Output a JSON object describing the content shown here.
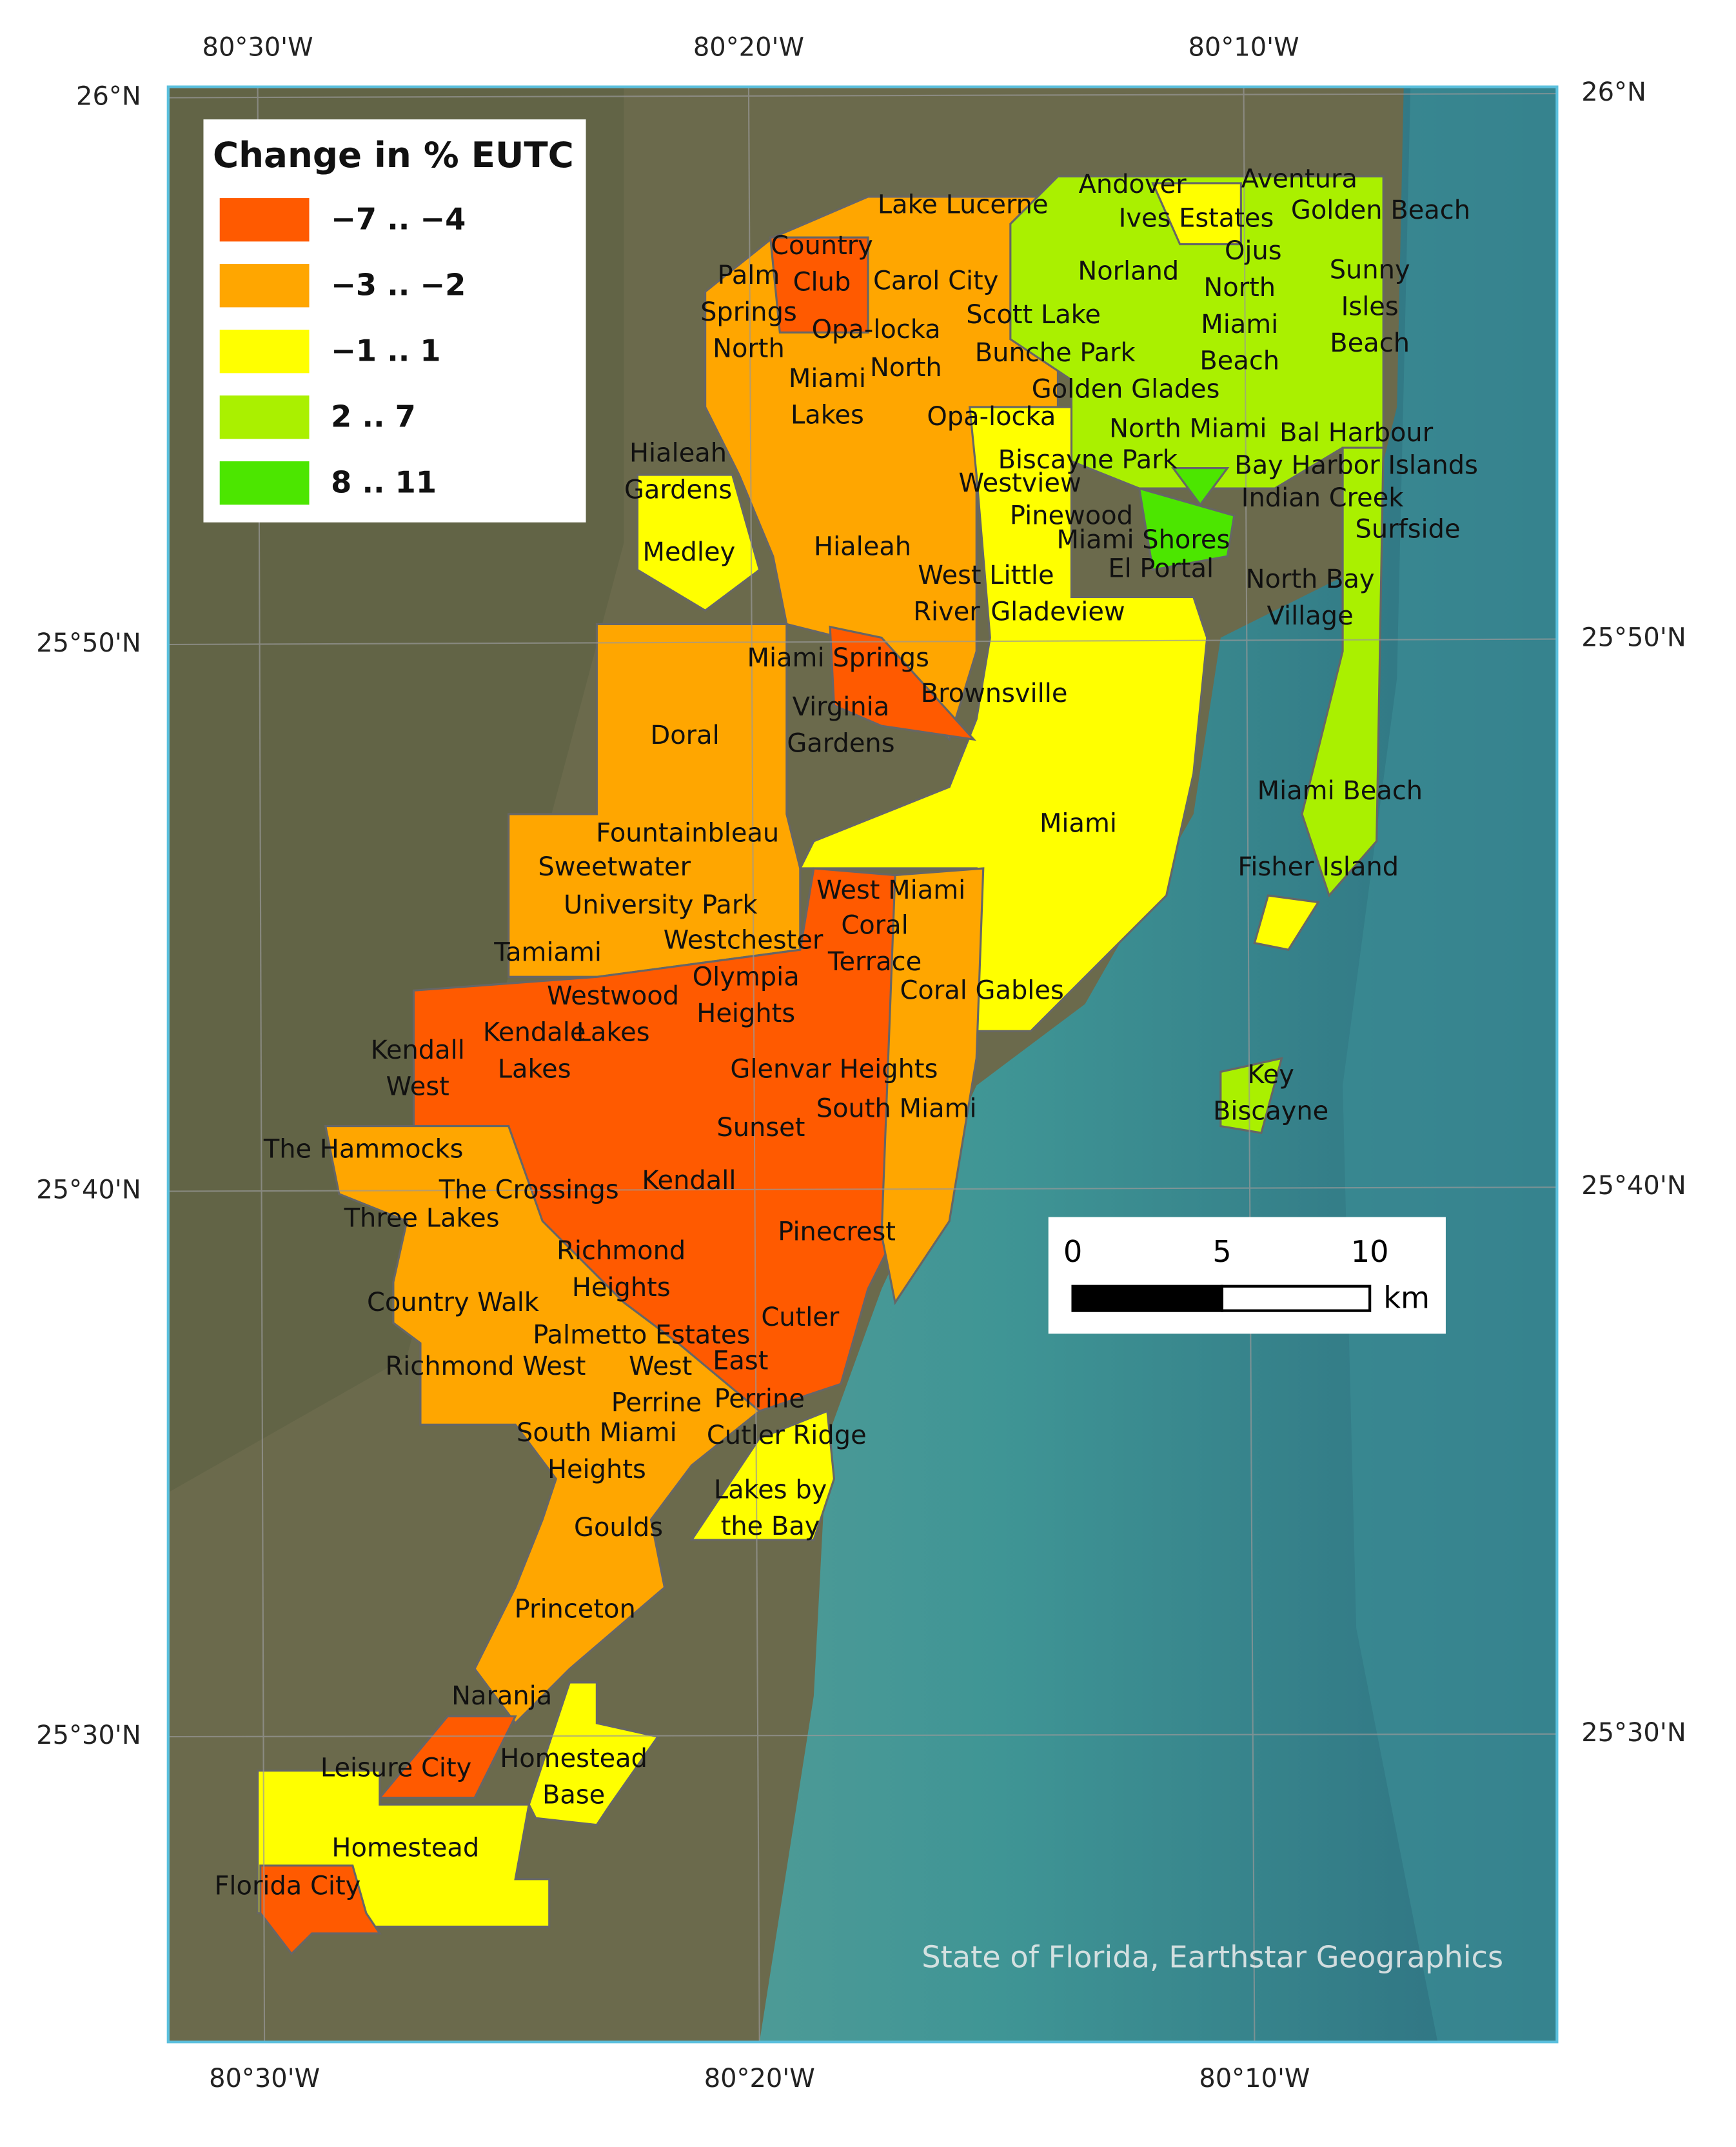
{
  "legend": {
    "title": "Change in % EUTC",
    "items": [
      {
        "label": "−7 .. −4",
        "color": "#ff5a00"
      },
      {
        "label": "−3 .. −2",
        "color": "#ffa600"
      },
      {
        "label": "−1 .. 1",
        "color": "#ffff00"
      },
      {
        "label": "2 .. 7",
        "color": "#aaf000"
      },
      {
        "label": "8 .. 11",
        "color": "#4ce600"
      }
    ]
  },
  "longitudes": [
    "80°30'W",
    "80°20'W",
    "80°10'W"
  ],
  "latitudes": [
    "26°N",
    "25°50'N",
    "25°40'N",
    "25°30'N"
  ],
  "scale_bar": {
    "ticks": [
      "0",
      "5",
      "10"
    ],
    "unit": "km"
  },
  "attribution": "State of Florida, Earthstar Geographics",
  "places": [
    "Lake Lucerne",
    "Andover",
    "Aventura",
    "Ives Estates",
    "Golden Beach",
    "Country\nClub",
    "Carol City",
    "Norland",
    "Ojus",
    "Sunny\nIsles\nBeach",
    "Palm\nSprings\nNorth",
    "Opa-locka",
    "Scott Lake",
    "North\nMiami\nBeach",
    "Miami\nLakes",
    "North",
    "Bunche Park",
    "Golden Glades",
    "Opa-locka",
    "North Miami",
    "Bal Harbour",
    "Hialeah\nGardens",
    "Biscayne Park",
    "Bay Harbor Islands",
    "Westview",
    "Indian Creek",
    "Pinewood",
    "Surfside",
    "Medley",
    "Hialeah",
    "Miami Shores",
    "West Little",
    "River",
    "El Portal",
    "North Bay\nVillage",
    "Gladeview",
    "Miami Springs",
    "Brownsville",
    "Virginia\nGardens",
    "Doral",
    "Miami",
    "Miami Beach",
    "Fountainbleau",
    "Sweetwater",
    "Fisher Island",
    "University Park",
    "West Miami",
    "Coral\nTerrace",
    "Westchester",
    "Tamiami",
    "Olympia\nHeights",
    "Coral Gables",
    "Westwood\nLakes",
    "Kendale\nLakes",
    "Kendall\nWest",
    "Glenvar Heights",
    "Key\nBiscayne",
    "South Miami",
    "Sunset",
    "The Hammocks",
    "Kendall",
    "The Crossings",
    "Three Lakes",
    "Pinecrest",
    "Richmond\nHeights",
    "Country Walk",
    "Cutler",
    "Palmetto Estates",
    "East",
    "Richmond West",
    "West",
    "Perrine",
    "Perrine",
    "Cutler Ridge",
    "South Miami\nHeights",
    "Lakes by\nthe Bay",
    "Goulds",
    "Princeton",
    "Naranja",
    "Homestead\nBase",
    "Leisure City",
    "Homestead",
    "Florida City"
  ]
}
